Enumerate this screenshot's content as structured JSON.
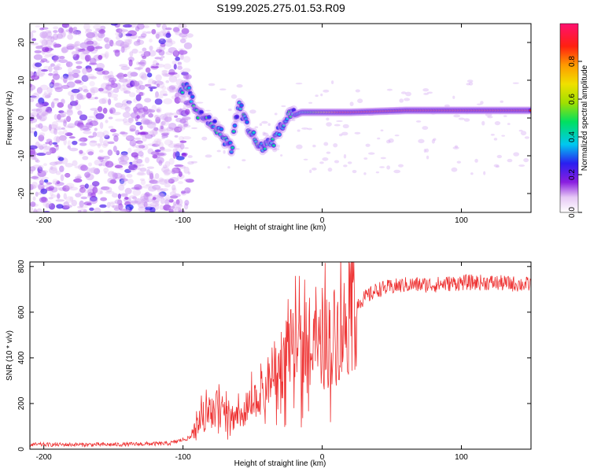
{
  "title": "S199.2025.275.01.53.R09",
  "chart_data": [
    {
      "id": "spectrogram",
      "type": "heatmap",
      "title": "S199.2025.275.01.53.R09",
      "xlabel": "Height of straight line (km)",
      "ylabel": "Frequency (Hz)",
      "xlim": [
        -210,
        150
      ],
      "ylim": [
        -25,
        25
      ],
      "xticks": [
        "-200",
        "-100",
        "0",
        "100"
      ],
      "yticks": [
        "-20",
        "-10",
        "0",
        "10",
        "20"
      ],
      "colorbar": {
        "label": "Normalized spectral amplitude",
        "range": [
          0,
          1
        ],
        "ticks": [
          "0.0",
          "0.2",
          "0.4",
          "0.6",
          "0.8"
        ]
      },
      "ridge": [
        {
          "x": -100,
          "y": 8
        },
        {
          "x": -95,
          "y": 7
        },
        {
          "x": -90,
          "y": 1
        },
        {
          "x": -80,
          "y": -1
        },
        {
          "x": -75,
          "y": -3
        },
        {
          "x": -65,
          "y": -8
        },
        {
          "x": -60,
          "y": 4
        },
        {
          "x": -55,
          "y": -1
        },
        {
          "x": -45,
          "y": -8
        },
        {
          "x": -35,
          "y": -6
        },
        {
          "x": -25,
          "y": 0
        },
        {
          "x": -15,
          "y": 1.5
        },
        {
          "x": 0,
          "y": 1.5
        },
        {
          "x": 20,
          "y": 1.5
        },
        {
          "x": 60,
          "y": 2
        },
        {
          "x": 100,
          "y": 2
        },
        {
          "x": 150,
          "y": 2
        }
      ]
    },
    {
      "id": "snr",
      "type": "line",
      "xlabel": "Height of straight line (km)",
      "ylabel": "SNR (10 * v/v)",
      "xlim": [
        -210,
        150
      ],
      "ylim": [
        0,
        820
      ],
      "xticks": [
        "-200",
        "-100",
        "0",
        "100"
      ],
      "yticks": [
        "0",
        "200",
        "400",
        "600",
        "800"
      ],
      "series": [
        {
          "name": "SNR",
          "color": "#ee3333",
          "x": [
            -210,
            -150,
            -110,
            -95,
            -85,
            -75,
            -65,
            -55,
            -45,
            -35,
            -25,
            -15,
            -5,
            5,
            15,
            25,
            40,
            60,
            80,
            100,
            120,
            150
          ],
          "y": [
            20,
            20,
            25,
            50,
            150,
            180,
            140,
            170,
            220,
            320,
            430,
            430,
            420,
            480,
            530,
            640,
            700,
            720,
            720,
            730,
            730,
            720
          ]
        }
      ]
    }
  ]
}
